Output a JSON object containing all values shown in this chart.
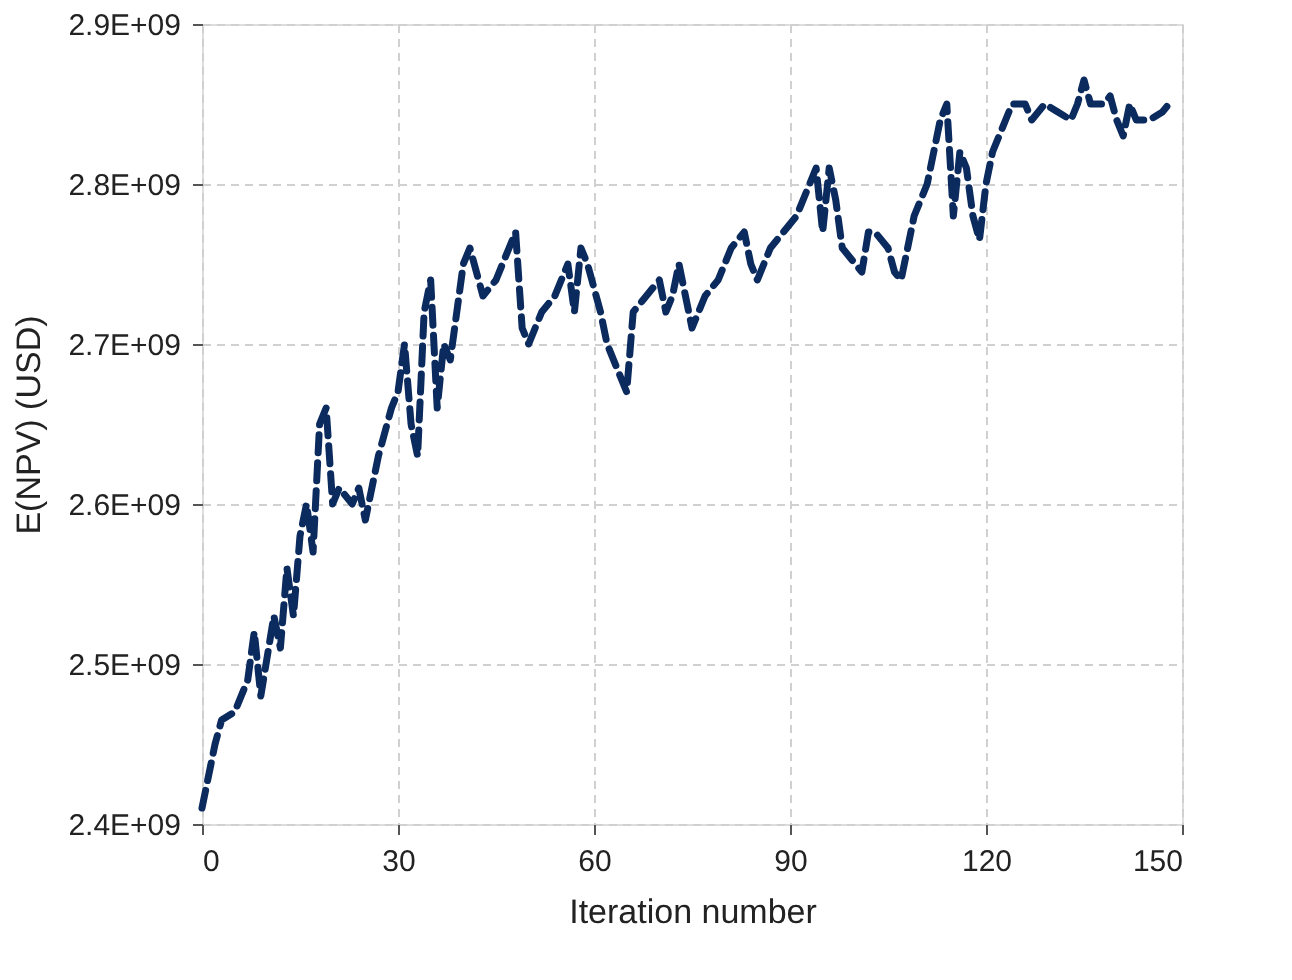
{
  "chart_data": {
    "type": "line",
    "xlabel": "Iteration number",
    "ylabel": "E(NPV) (USD)",
    "xlim": [
      0,
      150
    ],
    "xticks": [
      0,
      30,
      60,
      90,
      120,
      150
    ],
    "ylim": [
      2400000000.0,
      2900000000.0
    ],
    "yticks": [
      {
        "value": 2400000000.0,
        "label": "2.4E+09"
      },
      {
        "value": 2500000000.0,
        "label": "2.5E+09"
      },
      {
        "value": 2600000000.0,
        "label": "2.6E+09"
      },
      {
        "value": 2700000000.0,
        "label": "2.7E+09"
      },
      {
        "value": 2800000000.0,
        "label": "2.8E+09"
      },
      {
        "value": 2900000000.0,
        "label": "2.9E+09"
      }
    ],
    "grid": true,
    "line_style": "dashed",
    "marker": "none",
    "x": [
      0,
      2,
      3,
      5,
      7,
      8,
      9,
      11,
      12,
      13,
      14,
      15,
      16,
      17,
      18,
      19,
      20,
      21,
      23,
      24,
      25,
      27,
      29,
      30,
      31,
      32,
      33,
      34,
      35,
      36,
      37,
      38,
      40,
      41,
      43,
      45,
      47,
      48,
      49,
      50,
      52,
      54,
      56,
      57,
      58,
      59,
      61,
      62,
      64,
      65,
      66,
      68,
      70,
      71,
      72,
      73,
      75,
      77,
      79,
      81,
      83,
      84,
      85,
      87,
      89,
      91,
      93,
      94,
      95,
      96,
      97,
      98,
      100,
      101,
      102,
      103,
      105,
      106,
      107,
      109,
      111,
      113,
      114,
      115,
      116,
      117,
      118,
      119,
      120,
      121,
      123,
      124,
      126,
      127,
      129,
      131,
      133,
      134,
      135,
      136,
      138,
      139,
      140,
      141,
      142,
      143,
      145,
      147,
      148
    ],
    "series": [
      {
        "color": "#0b2a5e",
        "values": [
          2410000000.0,
          2450000000.0,
          2465000000.0,
          2470000000.0,
          2490000000.0,
          2520000000.0,
          2480000000.0,
          2530000000.0,
          2510000000.0,
          2560000000.0,
          2530000000.0,
          2580000000.0,
          2600000000.0,
          2570000000.0,
          2650000000.0,
          2660000000.0,
          2600000000.0,
          2610000000.0,
          2600000000.0,
          2610000000.0,
          2590000000.0,
          2630000000.0,
          2660000000.0,
          2670000000.0,
          2700000000.0,
          2650000000.0,
          2630000000.0,
          2720000000.0,
          2740000000.0,
          2660000000.0,
          2700000000.0,
          2690000000.0,
          2750000000.0,
          2760000000.0,
          2730000000.0,
          2740000000.0,
          2760000000.0,
          2770000000.0,
          2710000000.0,
          2700000000.0,
          2720000000.0,
          2730000000.0,
          2750000000.0,
          2720000000.0,
          2760000000.0,
          2750000000.0,
          2720000000.0,
          2700000000.0,
          2680000000.0,
          2670000000.0,
          2720000000.0,
          2730000000.0,
          2740000000.0,
          2720000000.0,
          2730000000.0,
          2750000000.0,
          2710000000.0,
          2730000000.0,
          2740000000.0,
          2760000000.0,
          2770000000.0,
          2750000000.0,
          2740000000.0,
          2760000000.0,
          2770000000.0,
          2780000000.0,
          2800000000.0,
          2810000000.0,
          2770000000.0,
          2810000000.0,
          2790000000.0,
          2760000000.0,
          2750000000.0,
          2745000000.0,
          2770000000.0,
          2770000000.0,
          2760000000.0,
          2745000000.0,
          2740000000.0,
          2780000000.0,
          2800000000.0,
          2840000000.0,
          2850000000.0,
          2780000000.0,
          2820000000.0,
          2810000000.0,
          2780000000.0,
          2765000000.0,
          2800000000.0,
          2820000000.0,
          2840000000.0,
          2850000000.0,
          2850000000.0,
          2840000000.0,
          2850000000.0,
          2845000000.0,
          2840000000.0,
          2850000000.0,
          2865000000.0,
          2850000000.0,
          2850000000.0,
          2855000000.0,
          2840000000.0,
          2830000000.0,
          2850000000.0,
          2840000000.0,
          2840000000.0,
          2845000000.0,
          2850000000.0
        ]
      }
    ]
  }
}
